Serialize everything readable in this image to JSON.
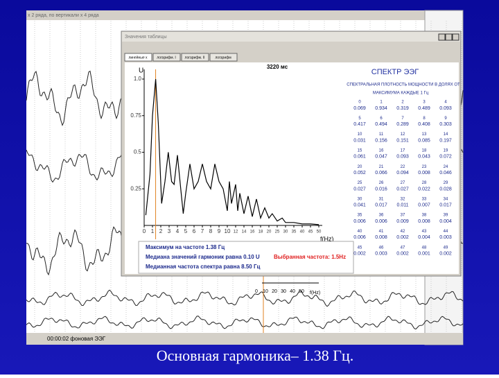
{
  "background_window": {
    "title": "x 2 ряда, по вертикали x 4 ряда",
    "status": "00:00:02 фоновая ЭЭГ",
    "mini_plot": {
      "xticks": [
        "0",
        "10",
        "20",
        "30",
        "40",
        "50"
      ],
      "x_label": "f(Hz)"
    }
  },
  "spectrum_window": {
    "title": "Значения таблицы",
    "tabs": [
      "линейные х",
      "логарифм. I",
      "логарифм. II",
      "логарифм"
    ],
    "time": "3220 мс",
    "heading": "СПЕКТР ЭЭГ",
    "subheading": [
      "СПЕКТРАЛЬНАЯ ПЛОТНОСТЬ МОЩНОСТИ В ДОЛЯХ ОТ",
      "МАКСИМУМА КАЖДЫЕ 1 Гц"
    ],
    "info": [
      "Максимум на частоте 1.38 Гц",
      "Медиана значений гармоник равна 0.10 U",
      "Медианная частота спектра равна 8.50 Гц"
    ],
    "selected": "Выбранная частота: 1.5Hz"
  },
  "chart_data": {
    "type": "line",
    "y_label": "U",
    "x_label": "f(Hz)",
    "x": [
      0.2,
      0.7,
      1.0,
      1.38,
      1.7,
      2.1,
      2.5,
      2.9,
      3.3,
      3.6,
      4.0,
      4.4,
      4.7,
      5.0,
      5.5,
      6.0,
      6.5,
      7.0,
      7.5,
      8.0,
      8.5,
      9.0,
      9.5,
      10,
      10.5,
      11,
      12,
      12.5,
      13,
      14,
      15,
      16,
      17,
      18,
      19,
      20,
      22,
      25,
      28,
      30,
      35,
      40,
      45,
      50
    ],
    "series": [
      {
        "color": "#000000",
        "values": [
          0.07,
          0.35,
          0.75,
          1.0,
          0.7,
          0.15,
          0.3,
          0.5,
          0.3,
          0.28,
          0.48,
          0.25,
          0.08,
          0.22,
          0.42,
          0.25,
          0.3,
          0.42,
          0.3,
          0.25,
          0.42,
          0.3,
          0.25,
          0.1,
          0.3,
          0.15,
          0.28,
          0.1,
          0.22,
          0.08,
          0.2,
          0.06,
          0.18,
          0.05,
          0.12,
          0.05,
          0.08,
          0.03,
          0.05,
          0.02,
          0.02,
          0.01,
          0.01,
          0.005
        ]
      }
    ],
    "marker_x": 1.38,
    "marker_color": "#e08020",
    "xlim": [
      0,
      50
    ],
    "ylim": [
      0,
      1
    ],
    "xticks": [
      0,
      1,
      2,
      3,
      4,
      5,
      6,
      7,
      8,
      9,
      10,
      12,
      14,
      16,
      18,
      20,
      25,
      30,
      35,
      40,
      45,
      50
    ],
    "yticks": [
      0.25,
      0.5,
      0.75,
      {
        "value": 1,
        "label": "1.0"
      }
    ]
  },
  "table": {
    "indices": [
      0,
      1,
      2,
      3,
      4,
      5,
      6,
      7,
      8,
      9,
      10,
      11,
      12,
      13,
      14,
      15,
      16,
      17,
      18,
      19,
      20,
      21,
      22,
      23,
      24,
      25,
      26,
      27,
      28,
      29,
      30,
      31,
      32,
      33,
      34,
      35,
      36,
      37,
      38,
      39,
      40,
      41,
      42,
      43,
      44,
      45,
      46,
      47,
      48,
      49
    ],
    "values": [
      "0.069",
      "0.934",
      "0.319",
      "0.489",
      "0.093",
      "0.417",
      "0.494",
      "0.289",
      "0.408",
      "0.303",
      "0.031",
      "0.156",
      "0.151",
      "0.085",
      "0.197",
      "0.061",
      "0.047",
      "0.093",
      "0.043",
      "0.072",
      "0.052",
      "0.066",
      "0.094",
      "0.008",
      "0.046",
      "0.027",
      "0.016",
      "0.027",
      "0.022",
      "0.028",
      "0.041",
      "0.017",
      "0.011",
      "0.007",
      "0.017",
      "0.006",
      "0.006",
      "0.009",
      "0.008",
      "0.004",
      "0.006",
      "0.008",
      "0.002",
      "0.004",
      "0.003",
      "0.002",
      "0.003",
      "0.002",
      "0.001",
      "0.002"
    ]
  },
  "slide": {
    "caption": "Основная гармоника– 1.38 Гц."
  }
}
